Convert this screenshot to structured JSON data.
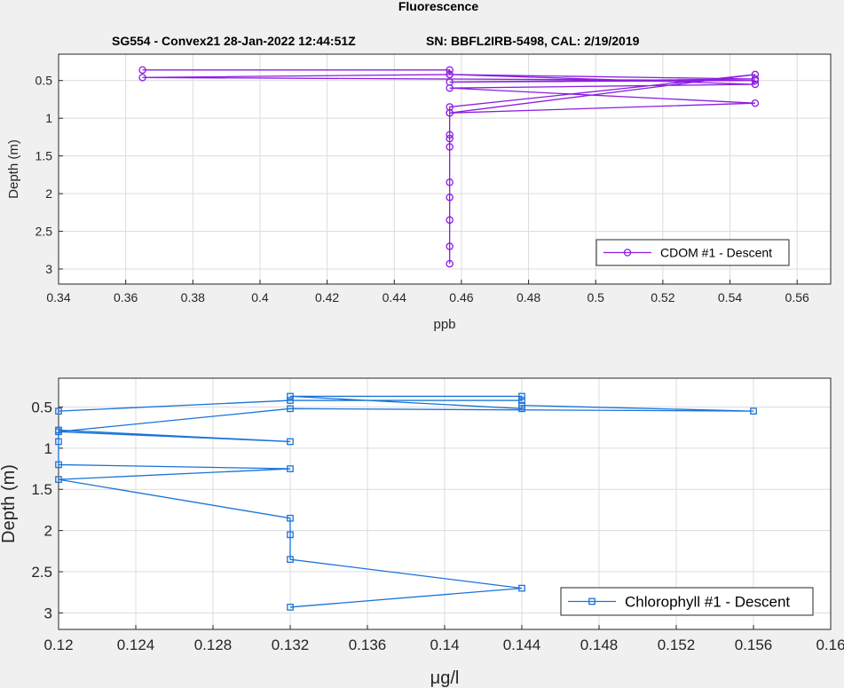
{
  "figure": {
    "title": "Fluorescence",
    "subtitle_left": "SG554 - Convex21 28-Jan-2022 12:44:51Z",
    "subtitle_right": "SN: BBFL2IRB-5498, CAL: 2/19/2019"
  },
  "colors": {
    "cdom": "#8b1ee0",
    "chlorophyll": "#1a73d9",
    "grid": "#dcdcdc",
    "axes_bg": "#ffffff",
    "figure_bg": "#f0f0f0"
  },
  "chart_data": [
    {
      "type": "line",
      "marker": "circle",
      "xlabel": "ppb",
      "ylabel": "Depth (m)",
      "xlim": [
        0.34,
        0.57
      ],
      "ylim": [
        0.15,
        3.2
      ],
      "y_reversed": true,
      "grid": true,
      "legend_position": "bottom-right",
      "xticks": [
        0.34,
        0.36,
        0.38,
        0.4,
        0.42,
        0.44,
        0.46,
        0.48,
        0.5,
        0.52,
        0.54,
        0.56
      ],
      "xtick_labels": [
        "0.34",
        "0.36",
        "0.38",
        "0.4",
        "0.42",
        "0.44",
        "0.46",
        "0.48",
        "0.5",
        "0.52",
        "0.54",
        "0.56"
      ],
      "yticks": [
        0.5,
        1,
        1.5,
        2,
        2.5,
        3
      ],
      "ytick_labels": [
        "0.5",
        "1",
        "1.5",
        "2",
        "2.5",
        "3"
      ],
      "series": [
        {
          "name": "CDOM #1 - Descent",
          "x": [
            0.365,
            0.4565,
            0.4565,
            0.5475,
            0.4565,
            0.5475,
            0.365,
            0.4565,
            0.5475,
            0.4565,
            0.5475,
            0.4565,
            0.5475,
            0.4565,
            0.4565,
            0.4565,
            0.4565,
            0.4565,
            0.4565,
            0.4565,
            0.4565,
            0.4565,
            0.4565
          ],
          "y": [
            0.36,
            0.36,
            0.42,
            0.48,
            0.52,
            0.5,
            0.46,
            0.42,
            0.55,
            0.6,
            0.8,
            0.93,
            0.42,
            0.85,
            0.93,
            1.22,
            1.27,
            1.38,
            1.85,
            2.05,
            2.35,
            2.7,
            2.93
          ]
        }
      ]
    },
    {
      "type": "line",
      "marker": "square",
      "xlabel": "μg/l",
      "ylabel": "Depth (m)",
      "xlim": [
        0.12,
        0.16
      ],
      "ylim": [
        0.15,
        3.2
      ],
      "y_reversed": true,
      "grid": true,
      "legend_position": "bottom-right",
      "xticks": [
        0.12,
        0.124,
        0.128,
        0.132,
        0.136,
        0.14,
        0.144,
        0.148,
        0.152,
        0.156,
        0.16
      ],
      "xtick_labels": [
        "0.12",
        "0.124",
        "0.128",
        "0.132",
        "0.136",
        "0.14",
        "0.144",
        "0.148",
        "0.152",
        "0.156",
        "0.16"
      ],
      "yticks": [
        0.5,
        1,
        1.5,
        2,
        2.5,
        3
      ],
      "ytick_labels": [
        "0.5",
        "1",
        "1.5",
        "2",
        "2.5",
        "3"
      ],
      "series": [
        {
          "name": "Chlorophyll #1 - Descent",
          "x": [
            0.12,
            0.132,
            0.144,
            0.144,
            0.132,
            0.144,
            0.144,
            0.156,
            0.132,
            0.12,
            0.132,
            0.12,
            0.12,
            0.12,
            0.132,
            0.12,
            0.132,
            0.132,
            0.132,
            0.144,
            0.132
          ],
          "y": [
            0.55,
            0.42,
            0.42,
            0.37,
            0.37,
            0.52,
            0.48,
            0.55,
            0.52,
            0.8,
            0.92,
            0.78,
            0.92,
            1.2,
            1.25,
            1.38,
            1.85,
            2.05,
            2.35,
            2.7,
            2.93
          ]
        }
      ]
    }
  ]
}
